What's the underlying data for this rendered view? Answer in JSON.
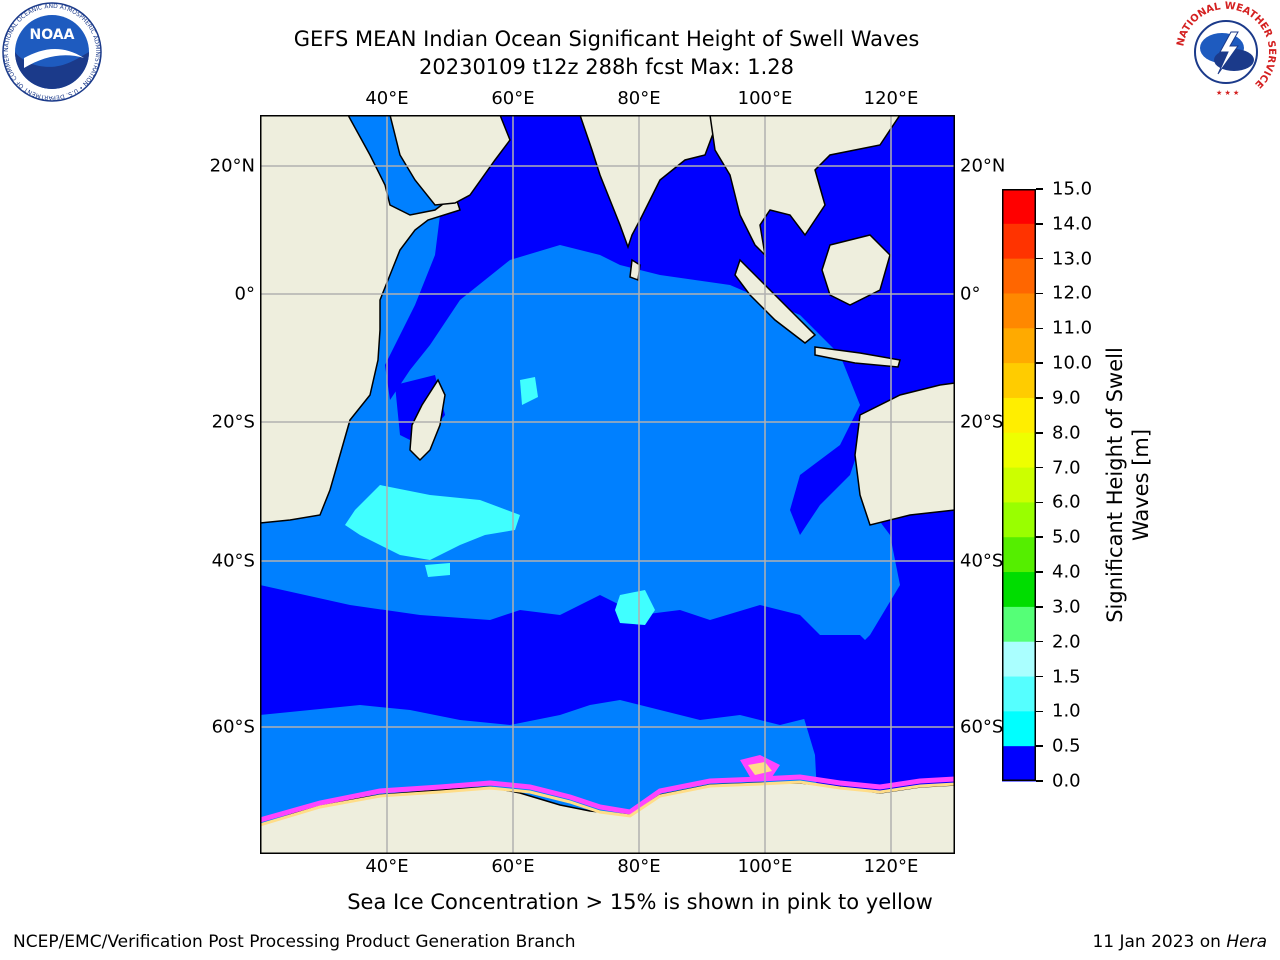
{
  "title_line1": "GEFS MEAN Indian Ocean Significant Height of Swell Waves",
  "title_line2": "20230109 t12z 288h fcst   Max: 1.28",
  "map": {
    "lon_labels": [
      "40°E",
      "60°E",
      "80°E",
      "100°E",
      "120°E"
    ],
    "lat_labels_left": [
      "20°N",
      "0°",
      "20°S",
      "40°S",
      "60°S"
    ],
    "lat_labels_right": [
      "20°N",
      "0°",
      "20°S",
      "40°S",
      "60°S"
    ],
    "colors": {
      "land": "#eeeedd",
      "shade_0_0p5": "#0000ff",
      "shade_0p5_1p0": "#0080ff",
      "shade_1p0_1p5": "#00ffff",
      "shade_1p5_2p0": "#40ffff",
      "ice_pink": "#ff44ff",
      "ice_yellow": "#ffdd88",
      "grid": "#b0b0b0"
    }
  },
  "colorbar": {
    "title_line1": "Significant Height of Swell",
    "title_line2": "Waves [m]",
    "ticks": [
      "15.0",
      "14.0",
      "13.0",
      "12.0",
      "11.0",
      "10.0",
      "9.0",
      "8.0",
      "7.0",
      "6.0",
      "5.0",
      "4.0",
      "3.0",
      "2.0",
      "1.5",
      "1.0",
      "0.5",
      "0.0"
    ],
    "colors": [
      "#ff0000",
      "#ff3300",
      "#ff6600",
      "#ff8800",
      "#ffaa00",
      "#ffcc00",
      "#ffee00",
      "#eeff00",
      "#ccff00",
      "#99ff00",
      "#55ee00",
      "#00dd00",
      "#55ff77",
      "#aaffff",
      "#55ffff",
      "#00ffff",
      "#0080ff",
      "#0000ff"
    ]
  },
  "note": "Sea Ice Concentration > 15% is shown in pink to yellow",
  "footer_left": "NCEP/EMC/Verification Post Processing Product Generation Branch",
  "footer_right_date": "11 Jan 2023 on ",
  "footer_right_machine": "Hera",
  "logos": {
    "noaa_text": "NOAA",
    "noaa_ring": "NATIONAL OCEANIC AND ATMOSPHERIC ADMINISTRATION • U.S. DEPARTMENT OF COMMERCE",
    "nws_ring": "NATIONAL WEATHER SERVICE"
  }
}
